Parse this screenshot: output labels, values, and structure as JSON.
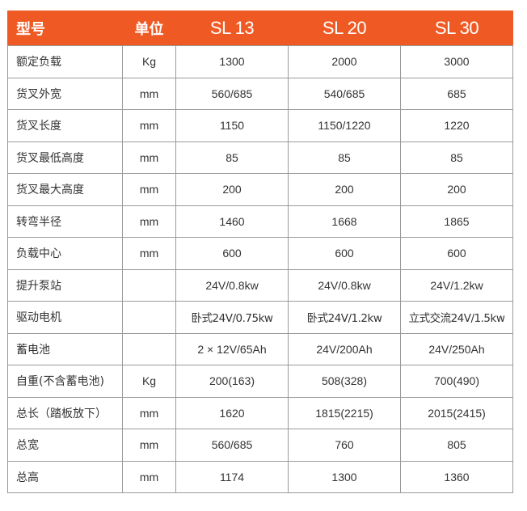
{
  "header": {
    "name": "型号",
    "unit": "单位",
    "models": [
      "SL 13",
      "SL 20",
      "SL 30"
    ]
  },
  "rows": [
    {
      "name": "额定负载",
      "unit": "Kg",
      "values": [
        "1300",
        "2000",
        "3000"
      ]
    },
    {
      "name": "货叉外宽",
      "unit": "mm",
      "values": [
        "560/685",
        "540/685",
        "685"
      ]
    },
    {
      "name": "货叉长度",
      "unit": "mm",
      "values": [
        "1150",
        "1150/1220",
        "1220"
      ]
    },
    {
      "name": "货叉最低高度",
      "unit": "mm",
      "values": [
        "85",
        "85",
        "85"
      ]
    },
    {
      "name": "货叉最大高度",
      "unit": "mm",
      "values": [
        "200",
        "200",
        "200"
      ]
    },
    {
      "name": "转弯半径",
      "unit": "mm",
      "values": [
        "1460",
        "1668",
        "1865"
      ]
    },
    {
      "name": "负载中心",
      "unit": "mm",
      "values": [
        "600",
        "600",
        "600"
      ]
    },
    {
      "name": "提升泵站",
      "unit": "",
      "values": [
        "24V/0.8kw",
        "24V/0.8kw",
        "24V/1.2kw"
      ]
    },
    {
      "name": "驱动电机",
      "unit": "",
      "values": [
        "卧式24V/0.75kw",
        "卧式24V/1.2kw",
        "立式交流24V/1.5kw"
      ]
    },
    {
      "name": "蓄电池",
      "unit": "",
      "values": [
        "2 × 12V/65Ah",
        "24V/200Ah",
        "24V/250Ah"
      ]
    },
    {
      "name": "自重(不含蓄电池)",
      "unit": "Kg",
      "values": [
        "200(163)",
        "508(328)",
        "700(490)"
      ]
    },
    {
      "name": "总长（踏板放下）",
      "unit": "mm",
      "values": [
        "1620",
        "1815(2215)",
        "2015(2415)"
      ]
    },
    {
      "name": "总宽",
      "unit": "mm",
      "values": [
        "560/685",
        "760",
        "805"
      ]
    },
    {
      "name": "总高",
      "unit": "mm",
      "values": [
        "1174",
        "1300",
        "1360"
      ]
    }
  ],
  "colors": {
    "header_bg": "#ef5a24",
    "header_text": "#ffffff",
    "grid": "#9a9a9a",
    "body_text": "#333333"
  }
}
